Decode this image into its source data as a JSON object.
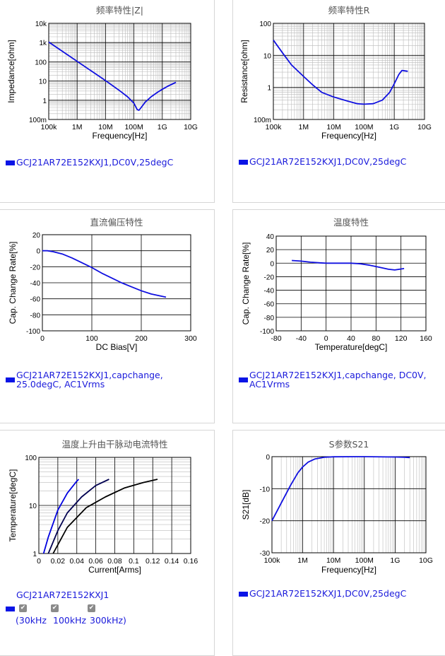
{
  "charts": [
    {
      "id": "impedance",
      "chart_data": {
        "type": "line",
        "title": "频率特性|Z|",
        "xlabel": "Frequency[Hz]",
        "ylabel": "Impedance[ohm]",
        "xscale": "log",
        "yscale": "log",
        "xlim": [
          100000,
          10000000000
        ],
        "ylim": [
          0.1,
          10000
        ],
        "xticks": [
          "100k",
          "1M",
          "10M",
          "100M",
          "1G",
          "10G"
        ],
        "yticks": [
          "100m",
          "1",
          "10",
          "100",
          "1k",
          "10k"
        ],
        "grid": true,
        "series": [
          {
            "name": "GCJ21AR72E152KXJ1,DC0V,25degC",
            "x": [
              100000,
              300000,
              1000000,
              3000000,
              10000000,
              30000000,
              60000000,
              100000000,
              130000000,
              150000000,
              180000000,
              250000000,
              400000000,
              700000000,
              1000000000,
              1600000000,
              2500000000,
              3000000000
            ],
            "y": [
              1060,
              354,
              106,
              35,
              10.5,
              3.3,
              1.5,
              0.7,
              0.33,
              0.3,
              0.42,
              0.8,
              1.5,
              2.7,
              3.7,
              5.5,
              7.5,
              8.5
            ]
          }
        ]
      },
      "legend": "GCJ21AR72E152KXJ1,DC0V,25degC"
    },
    {
      "id": "resistance",
      "chart_data": {
        "type": "line",
        "title": "频率特性R",
        "xlabel": "Frequency[Hz]",
        "ylabel": "Resistance[ohm]",
        "xscale": "log",
        "yscale": "log",
        "xlim": [
          100000,
          10000000000
        ],
        "ylim": [
          0.1,
          100
        ],
        "xticks": [
          "100k",
          "1M",
          "10M",
          "100M",
          "1G",
          "10G"
        ],
        "yticks": [
          "100m",
          "1",
          "10",
          "100"
        ],
        "grid": true,
        "series": [
          {
            "name": "GCJ21AR72E152KXJ1,DC0V,25degC",
            "x": [
              100000,
              200000,
              400000,
              1000000,
              2000000,
              4000000,
              10000000,
              30000000,
              60000000,
              100000000,
              200000000,
              400000000,
              700000000,
              1000000000,
              1400000000,
              1800000000,
              2200000000,
              2800000000
            ],
            "y": [
              30,
              12,
              5,
              2.2,
              1.2,
              0.7,
              0.5,
              0.37,
              0.31,
              0.3,
              0.31,
              0.4,
              0.7,
              1.3,
              2.5,
              3.4,
              3.3,
              3.2
            ]
          }
        ]
      },
      "legend": "GCJ21AR72E152KXJ1,DC0V,25degC"
    },
    {
      "id": "dcbias",
      "chart_data": {
        "type": "line",
        "title": "直流偏压特性",
        "xlabel": "DC Bias[V]",
        "ylabel": "Cap. Change Rate[%]",
        "xlim": [
          0,
          300
        ],
        "ylim": [
          -100,
          20
        ],
        "xticks": [
          "0",
          "100",
          "200",
          "300"
        ],
        "yticks": [
          "20",
          "0",
          "-20",
          "-40",
          "-60",
          "-80",
          "-100"
        ],
        "grid": true,
        "series": [
          {
            "name": "GCJ21AR72E152KXJ1,capchange, 25.0degC, AC1Vrms",
            "x": [
              0,
              10,
              20,
              40,
              60,
              80,
              100,
              120,
              140,
              160,
              180,
              200,
              220,
              250
            ],
            "y": [
              0,
              0,
              -1,
              -4,
              -9,
              -15,
              -21,
              -28,
              -34,
              -40,
              -45,
              -50,
              -54,
              -58
            ]
          }
        ]
      },
      "legend_line1": "GCJ21AR72E152KXJ1,capchange,",
      "legend_line2": "25.0degC, AC1Vrms"
    },
    {
      "id": "temperature",
      "chart_data": {
        "type": "line",
        "title": "温度特性",
        "xlabel": "Temperature[degC]",
        "ylabel": "Cap. Change Rate[%]",
        "xlim": [
          -80,
          160
        ],
        "ylim": [
          -100,
          40
        ],
        "xticks": [
          "-80",
          "-40",
          "0",
          "40",
          "80",
          "120",
          "160"
        ],
        "yticks": [
          "40",
          "20",
          "0",
          "-20",
          "-40",
          "-60",
          "-80",
          "-100"
        ],
        "grid": true,
        "series": [
          {
            "name": "GCJ21AR72E152KXJ1,capchange, DC0V, AC1Vrms",
            "x": [
              -55,
              -40,
              -25,
              -10,
              0,
              25,
              40,
              55,
              70,
              85,
              100,
              110,
              125
            ],
            "y": [
              4,
              3,
              1.5,
              0.5,
              0,
              0,
              0,
              -1,
              -3,
              -6,
              -9,
              -10,
              -8
            ]
          }
        ]
      },
      "legend_line1": "GCJ21AR72E152KXJ1,capchange, DC0V,",
      "legend_line2": "AC1Vrms"
    },
    {
      "id": "ripple",
      "chart_data": {
        "type": "line",
        "title": "温度上升由干脉动电流特性",
        "xlabel": "Current[Arms]",
        "ylabel": "Temperature[degC]",
        "yscale": "log",
        "xlim": [
          0,
          0.16
        ],
        "ylim": [
          1,
          100
        ],
        "xticks": [
          "0",
          "0.02",
          "0.04",
          "0.06",
          "0.08",
          "0.1",
          "0.12",
          "0.14",
          "0.16"
        ],
        "yticks": [
          "1",
          "10",
          "100"
        ],
        "grid": true,
        "series": [
          {
            "name": "30kHz",
            "x": [
              0.005,
              0.01,
              0.02,
              0.03,
              0.04,
              0.042
            ],
            "y": [
              1,
              2.2,
              8,
              18,
              32,
              35
            ],
            "color": "#0000e0"
          },
          {
            "name": "100kHz",
            "x": [
              0.01,
              0.02,
              0.03,
              0.045,
              0.06,
              0.074
            ],
            "y": [
              1,
              3,
              7,
              15,
              26,
              35
            ],
            "color": "#000050"
          },
          {
            "name": "300kHz",
            "x": [
              0.015,
              0.03,
              0.05,
              0.07,
              0.09,
              0.11,
              0.125
            ],
            "y": [
              1,
              3.5,
              9,
              15,
              23,
              30,
              35
            ],
            "color": "#000000"
          }
        ]
      },
      "legend_title": "GCJ21AR72E152KXJ1",
      "legend_labels": [
        "(30kHz",
        "100kHz",
        "300kHz)"
      ],
      "checkmark": "✔"
    },
    {
      "id": "s21",
      "chart_data": {
        "type": "line",
        "title": "S参数S21",
        "xlabel": "Frequency[Hz]",
        "ylabel": "S21[dB]",
        "xscale": "log",
        "xlim": [
          100000,
          10000000000
        ],
        "ylim": [
          -30,
          0
        ],
        "xticks": [
          "100k",
          "1M",
          "10M",
          "100M",
          "1G",
          "10G"
        ],
        "yticks": [
          "0",
          "-10",
          "-20",
          "-30"
        ],
        "grid": true,
        "series": [
          {
            "name": "GCJ21AR72E152KXJ1,DC0V,25degC",
            "x": [
              100000,
              200000,
              400000,
              700000,
              1000000,
              1500000,
              2500000,
              5000000,
              10000000,
              100000000,
              1000000000,
              2000000000,
              3000000000
            ],
            "y": [
              -20,
              -14.5,
              -9,
              -5,
              -3.2,
              -1.7,
              -0.7,
              -0.2,
              -0.05,
              0,
              -0.1,
              -0.2,
              -0.3
            ]
          }
        ]
      },
      "legend": "GCJ21AR72E152KXJ1,DC0V,25degC"
    }
  ],
  "colors": {
    "curve": "#1010e0",
    "legend_text": "#1a1adb",
    "grid": "#000000",
    "minor_grid": "#bbbbbb"
  }
}
